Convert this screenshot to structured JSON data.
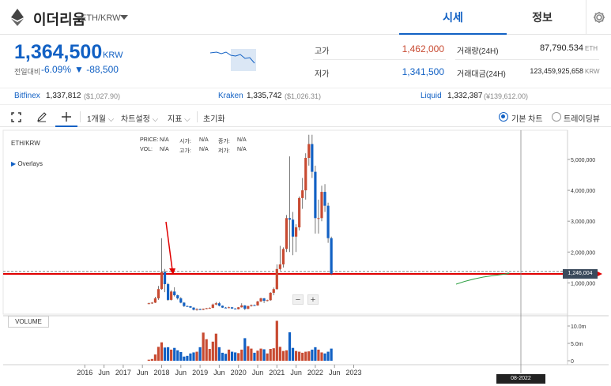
{
  "header": {
    "coin_name": "이더리움",
    "pair": "ETH/KRW",
    "tabs": [
      {
        "label": "시세",
        "active": true
      },
      {
        "label": "정보",
        "active": false
      }
    ]
  },
  "ticker": {
    "price": "1,364,500",
    "unit": "KRW",
    "change_label": "전일대비",
    "change_pct": "-6.09%",
    "change_abs": "▼ -88,500",
    "high_label": "고가",
    "high_value": "1,462,000",
    "low_label": "저가",
    "low_value": "1,341,500",
    "vol_label": "거래량(24H)",
    "vol_value": "87,790.534",
    "vol_unit": "ETH",
    "amt_label": "거래대금(24H)",
    "amt_value": "123,459,925,658",
    "amt_unit": "KRW"
  },
  "exchanges": [
    {
      "name": "Bitfinex",
      "price": "1,337,812",
      "usd": "($1,027.90)"
    },
    {
      "name": "Kraken",
      "price": "1,335,742",
      "usd": "($1,026.31)"
    },
    {
      "name": "Liquid",
      "price": "1,332,387",
      "usd": "(¥139,612.00)"
    }
  ],
  "toolbar": {
    "interval": "1개월",
    "chart_settings": "차트설정",
    "indicators": "지표",
    "reset": "초기화",
    "basic_chart": "기본 차트",
    "tradingview": "트레이딩뷰"
  },
  "chart": {
    "symbol": "ETH/KRW",
    "overlays": "Overlays",
    "info": {
      "price_lbl": "PRICE:",
      "price": "N/A",
      "open_lbl": "시가:",
      "open": "N/A",
      "close_lbl": "종가:",
      "close": "N/A",
      "vol_lbl": "VOL:",
      "vol": "N/A",
      "high_lbl": "고가:",
      "high": "N/A",
      "low_lbl": "저가:",
      "low": "N/A"
    },
    "volume_label": "VOLUME",
    "current_price_tag": "1,246,004",
    "current_date_tag": "08-2022",
    "colors": {
      "up": "#c84a31",
      "down": "#1261c4",
      "annotation": "#e00000"
    }
  },
  "chart_data": {
    "type": "candlestick",
    "title": "ETH/KRW",
    "x_ticks": [
      "2016",
      "Jun",
      "2017",
      "Jun",
      "2018",
      "Jun",
      "2019",
      "Jun",
      "2020",
      "Jun",
      "2021",
      "Jun",
      "2022",
      "Jun",
      "2023"
    ],
    "y_ticks": [
      "1,000,000",
      "2,000,000",
      "3,000,000",
      "4,000,000",
      "5,000,000"
    ],
    "ylim": [
      0,
      5800000
    ],
    "volume_ticks": [
      "0",
      "5.0m",
      "10.0m"
    ],
    "volume_ylim": [
      0,
      13000000
    ],
    "series": [
      {
        "m": "2017-09",
        "o": 330000,
        "c": 340000,
        "h": 360000,
        "l": 310000,
        "v": 300000
      },
      {
        "m": "2017-10",
        "o": 340000,
        "c": 360000,
        "h": 380000,
        "l": 320000,
        "v": 500000
      },
      {
        "m": "2017-11",
        "o": 360000,
        "c": 500000,
        "h": 550000,
        "l": 350000,
        "v": 1800000
      },
      {
        "m": "2017-12",
        "o": 500000,
        "c": 800000,
        "h": 900000,
        "l": 450000,
        "v": 4000000
      },
      {
        "m": "2018-01",
        "o": 800000,
        "c": 1350000,
        "h": 2450000,
        "l": 780000,
        "v": 5300000
      },
      {
        "m": "2018-02",
        "o": 1350000,
        "c": 960000,
        "h": 1450000,
        "l": 700000,
        "v": 3800000
      },
      {
        "m": "2018-03",
        "o": 960000,
        "c": 450000,
        "h": 1000000,
        "l": 420000,
        "v": 3900000
      },
      {
        "m": "2018-04",
        "o": 450000,
        "c": 720000,
        "h": 760000,
        "l": 430000,
        "v": 3200000
      },
      {
        "m": "2018-05",
        "o": 720000,
        "c": 600000,
        "h": 860000,
        "l": 560000,
        "v": 3700000
      },
      {
        "m": "2018-06",
        "o": 600000,
        "c": 500000,
        "h": 620000,
        "l": 460000,
        "v": 3000000
      },
      {
        "m": "2018-07",
        "o": 500000,
        "c": 360000,
        "h": 540000,
        "l": 340000,
        "v": 2500000
      },
      {
        "m": "2018-08",
        "o": 360000,
        "c": 250000,
        "h": 380000,
        "l": 220000,
        "v": 1200000
      },
      {
        "m": "2018-09",
        "o": 250000,
        "c": 245000,
        "h": 270000,
        "l": 230000,
        "v": 1400000
      },
      {
        "m": "2018-10",
        "o": 245000,
        "c": 200000,
        "h": 250000,
        "l": 190000,
        "v": 2100000
      },
      {
        "m": "2018-11",
        "o": 200000,
        "c": 130000,
        "h": 210000,
        "l": 110000,
        "v": 2400000
      },
      {
        "m": "2018-12",
        "o": 130000,
        "c": 150000,
        "h": 180000,
        "l": 100000,
        "v": 2600000
      },
      {
        "m": "2019-01",
        "o": 150000,
        "c": 130000,
        "h": 170000,
        "l": 120000,
        "v": 3900000
      },
      {
        "m": "2019-02",
        "o": 130000,
        "c": 160000,
        "h": 170000,
        "l": 120000,
        "v": 8100000
      },
      {
        "m": "2019-03",
        "o": 160000,
        "c": 180000,
        "h": 190000,
        "l": 150000,
        "v": 6200000
      },
      {
        "m": "2019-04",
        "o": 180000,
        "c": 190000,
        "h": 210000,
        "l": 170000,
        "v": 3400000
      },
      {
        "m": "2019-05",
        "o": 190000,
        "c": 300000,
        "h": 330000,
        "l": 180000,
        "v": 5500000
      },
      {
        "m": "2019-06",
        "o": 300000,
        "c": 340000,
        "h": 380000,
        "l": 280000,
        "v": 7800000
      },
      {
        "m": "2019-07",
        "o": 340000,
        "c": 260000,
        "h": 380000,
        "l": 240000,
        "v": 3900000
      },
      {
        "m": "2019-08",
        "o": 260000,
        "c": 200000,
        "h": 270000,
        "l": 190000,
        "v": 2300000
      },
      {
        "m": "2019-09",
        "o": 200000,
        "c": 190000,
        "h": 220000,
        "l": 180000,
        "v": 2000000
      },
      {
        "m": "2019-10",
        "o": 190000,
        "c": 210000,
        "h": 230000,
        "l": 180000,
        "v": 3200000
      },
      {
        "m": "2019-11",
        "o": 210000,
        "c": 170000,
        "h": 220000,
        "l": 160000,
        "v": 2600000
      },
      {
        "m": "2019-12",
        "o": 170000,
        "c": 150000,
        "h": 180000,
        "l": 140000,
        "v": 2400000
      },
      {
        "m": "2020-01",
        "o": 150000,
        "c": 210000,
        "h": 220000,
        "l": 140000,
        "v": 2200000
      },
      {
        "m": "2020-02",
        "o": 210000,
        "c": 270000,
        "h": 340000,
        "l": 200000,
        "v": 3200000
      },
      {
        "m": "2020-03",
        "o": 270000,
        "c": 160000,
        "h": 280000,
        "l": 120000,
        "v": 6500000
      },
      {
        "m": "2020-04",
        "o": 160000,
        "c": 250000,
        "h": 260000,
        "l": 150000,
        "v": 4200000
      },
      {
        "m": "2020-05",
        "o": 250000,
        "c": 280000,
        "h": 300000,
        "l": 230000,
        "v": 3500000
      },
      {
        "m": "2020-06",
        "o": 280000,
        "c": 270000,
        "h": 300000,
        "l": 260000,
        "v": 2300000
      },
      {
        "m": "2020-07",
        "o": 270000,
        "c": 400000,
        "h": 420000,
        "l": 260000,
        "v": 2900000
      },
      {
        "m": "2020-08",
        "o": 400000,
        "c": 500000,
        "h": 520000,
        "l": 380000,
        "v": 3500000
      },
      {
        "m": "2020-09",
        "o": 500000,
        "c": 420000,
        "h": 510000,
        "l": 350000,
        "v": 3300000
      },
      {
        "m": "2020-10",
        "o": 420000,
        "c": 440000,
        "h": 460000,
        "l": 400000,
        "v": 2100000
      },
      {
        "m": "2020-11",
        "o": 440000,
        "c": 680000,
        "h": 700000,
        "l": 420000,
        "v": 3400000
      },
      {
        "m": "2020-12",
        "o": 680000,
        "c": 800000,
        "h": 850000,
        "l": 600000,
        "v": 3600000
      },
      {
        "m": "2021-01",
        "o": 800000,
        "c": 1450000,
        "h": 1600000,
        "l": 780000,
        "v": 11500000
      },
      {
        "m": "2021-02",
        "o": 1450000,
        "c": 1600000,
        "h": 2200000,
        "l": 1400000,
        "v": 4000000
      },
      {
        "m": "2021-03",
        "o": 1600000,
        "c": 2100000,
        "h": 2150000,
        "l": 1500000,
        "v": 2800000
      },
      {
        "m": "2021-04",
        "o": 2100000,
        "c": 3100000,
        "h": 3200000,
        "l": 2000000,
        "v": 3000000
      },
      {
        "m": "2021-05",
        "o": 3100000,
        "c": 3050000,
        "h": 5100000,
        "l": 2000000,
        "v": 8200000
      },
      {
        "m": "2021-06",
        "o": 3050000,
        "c": 2500000,
        "h": 3300000,
        "l": 1900000,
        "v": 3700000
      },
      {
        "m": "2021-07",
        "o": 2500000,
        "c": 2800000,
        "h": 2900000,
        "l": 2000000,
        "v": 2800000
      },
      {
        "m": "2021-08",
        "o": 2800000,
        "c": 3750000,
        "h": 3800000,
        "l": 2700000,
        "v": 2600000
      },
      {
        "m": "2021-09",
        "o": 3750000,
        "c": 4000000,
        "h": 4400000,
        "l": 3400000,
        "v": 2300000
      },
      {
        "m": "2021-10",
        "o": 4000000,
        "c": 5050000,
        "h": 5200000,
        "l": 3700000,
        "v": 2600000
      },
      {
        "m": "2021-11",
        "o": 5050000,
        "c": 5500000,
        "h": 5800000,
        "l": 4800000,
        "v": 2700000
      },
      {
        "m": "2021-12",
        "o": 5500000,
        "c": 4600000,
        "h": 5800000,
        "l": 4400000,
        "v": 3200000
      },
      {
        "m": "2022-01",
        "o": 4600000,
        "c": 3100000,
        "h": 4800000,
        "l": 2600000,
        "v": 3900000
      },
      {
        "m": "2022-02",
        "o": 3100000,
        "c": 3100000,
        "h": 3700000,
        "l": 2600000,
        "v": 3200000
      },
      {
        "m": "2022-03",
        "o": 3100000,
        "c": 3950000,
        "h": 4150000,
        "l": 3000000,
        "v": 2400000
      },
      {
        "m": "2022-04",
        "o": 3950000,
        "c": 3500000,
        "h": 4200000,
        "l": 3300000,
        "v": 2100000
      },
      {
        "m": "2022-05",
        "o": 3500000,
        "c": 2450000,
        "h": 3600000,
        "l": 2300000,
        "v": 2600000
      },
      {
        "m": "2022-06",
        "o": 2450000,
        "c": 1300000,
        "h": 2500000,
        "l": 1250000,
        "v": 3500000
      }
    ]
  }
}
